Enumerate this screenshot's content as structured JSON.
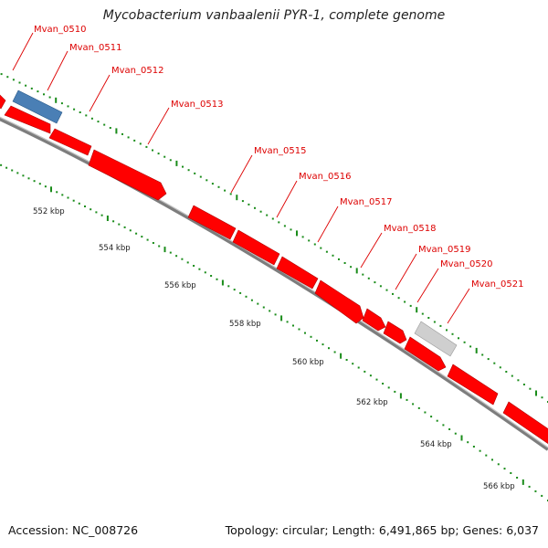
{
  "title": "Mycobacterium vanbaalenii PYR-1, complete genome",
  "footer": {
    "accession": "Accession: NC_008726",
    "stats": "Topology: circular; Length: 6,491,865 bp; Genes: 6,037"
  },
  "colors": {
    "forward_gene": "#ff0000",
    "blue_gene": "#4a7fb5",
    "gray_gene": "#c8c8c8",
    "ticks": "#1a8c1a",
    "backbone": "#888888",
    "label": "#dd0000"
  },
  "kbp_labels": [
    "552 kbp",
    "554 kbp",
    "556 kbp",
    "558 kbp",
    "560 kbp",
    "562 kbp",
    "564 kbp",
    "566 kbp"
  ],
  "gene_labels": [
    "Mvan_0510",
    "Mvan_0511",
    "Mvan_0512",
    "Mvan_0513",
    "Mvan_0515",
    "Mvan_0516",
    "Mvan_0517",
    "Mvan_0518",
    "Mvan_0519",
    "Mvan_0520",
    "Mvan_0521"
  ]
}
